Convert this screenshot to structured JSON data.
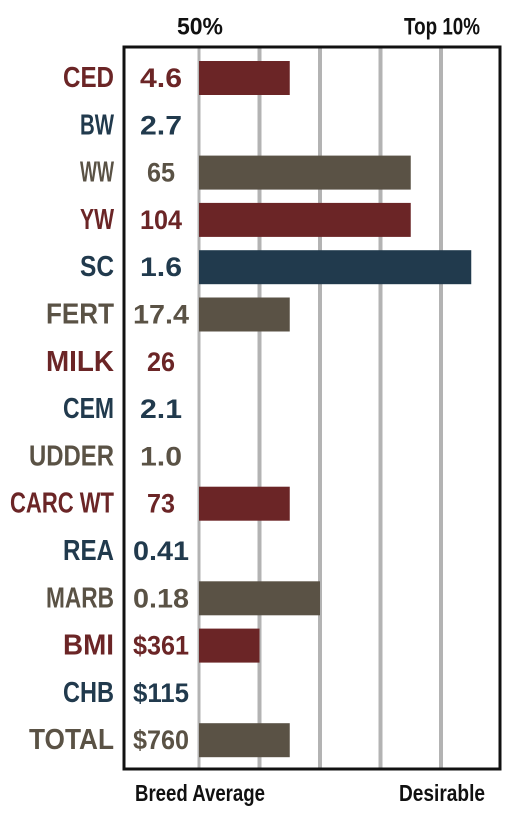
{
  "chart_data": {
    "type": "bar",
    "orientation": "horizontal",
    "top_labels": [
      "50%",
      "Top 10%"
    ],
    "bottom_labels": [
      "Breed Average",
      "Desirable"
    ],
    "grid": true,
    "xlim": [
      0,
      5
    ],
    "xticks": [
      1,
      2,
      3,
      4
    ],
    "colors": {
      "red": "#6b2526",
      "blue": "#213a4d",
      "gray": "#5a5245",
      "grid": "#b3b3b3",
      "frame": "#111111"
    },
    "rows": [
      {
        "trait": "CED",
        "value": "4.6",
        "bar": 1.5,
        "color": "red"
      },
      {
        "trait": "BW",
        "value": "2.7",
        "bar": 0,
        "color": "blue"
      },
      {
        "trait": "WW",
        "value": "65",
        "bar": 3.5,
        "color": "gray"
      },
      {
        "trait": "YW",
        "value": "104",
        "bar": 3.5,
        "color": "red"
      },
      {
        "trait": "SC",
        "value": "1.6",
        "bar": 4.5,
        "color": "blue"
      },
      {
        "trait": "FERT",
        "value": "17.4",
        "bar": 1.5,
        "color": "gray"
      },
      {
        "trait": "MILK",
        "value": "26",
        "bar": 0,
        "color": "red"
      },
      {
        "trait": "CEM",
        "value": "2.1",
        "bar": 0,
        "color": "blue"
      },
      {
        "trait": "UDDER",
        "value": "1.0",
        "bar": 0,
        "color": "gray"
      },
      {
        "trait": "CARC WT",
        "value": "73",
        "bar": 1.5,
        "color": "red"
      },
      {
        "trait": "REA",
        "value": "0.41",
        "bar": 0,
        "color": "blue"
      },
      {
        "trait": "MARB",
        "value": "0.18",
        "bar": 2,
        "color": "gray"
      },
      {
        "trait": "BMI",
        "value": "$361",
        "bar": 1,
        "color": "red"
      },
      {
        "trait": "CHB",
        "value": "$115",
        "bar": 0,
        "color": "blue"
      },
      {
        "trait": "TOTAL",
        "value": "$760",
        "bar": 1.5,
        "color": "gray"
      }
    ]
  }
}
